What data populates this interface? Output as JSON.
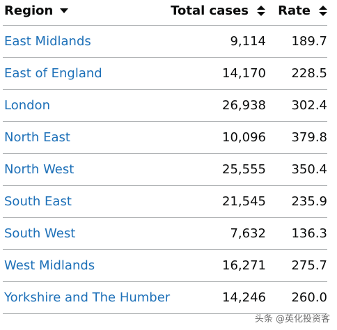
{
  "header": {
    "region_label": "Region",
    "cases_label": "Total cases",
    "rate_label": "Rate",
    "region_sort_icon": "caret-down-icon",
    "cases_sort_icon": "sort-updown-icon",
    "rate_sort_icon": "sort-updown-icon"
  },
  "rows": [
    {
      "region": "East Midlands",
      "cases": "9,114",
      "rate": "189.7"
    },
    {
      "region": "East of England",
      "cases": "14,170",
      "rate": "228.5"
    },
    {
      "region": "London",
      "cases": "26,938",
      "rate": "302.4"
    },
    {
      "region": "North East",
      "cases": "10,096",
      "rate": "379.8"
    },
    {
      "region": "North West",
      "cases": "25,555",
      "rate": "350.4"
    },
    {
      "region": "South East",
      "cases": "21,545",
      "rate": "235.9"
    },
    {
      "region": "South West",
      "cases": "7,632",
      "rate": "136.3"
    },
    {
      "region": "West Midlands",
      "cases": "16,271",
      "rate": "275.7"
    },
    {
      "region": "Yorkshire and The Humber",
      "cases": "14,246",
      "rate": "260.0"
    }
  ],
  "watermark": "头条 @英化投资客",
  "colors": {
    "link": "#1d70b8",
    "text": "#0b0c0c",
    "border": "#b1b4b6"
  }
}
